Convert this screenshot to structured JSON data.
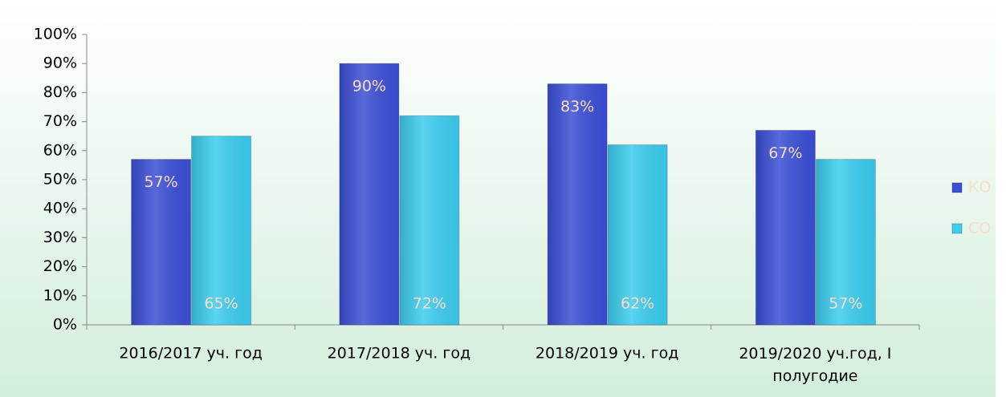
{
  "chart_data": {
    "type": "bar",
    "categories": [
      "2016/2017 уч. год",
      "2017/2018 уч. год",
      "2018/2019 уч. год",
      "2019/2020 уч.год, I полугодие"
    ],
    "series": [
      {
        "name": "КО",
        "color": "#3b4fd6",
        "values": [
          57,
          90,
          83,
          67
        ],
        "value_labels": [
          "57%",
          "90%",
          "83%",
          "67%"
        ]
      },
      {
        "name": "СО",
        "color": "#3ccdef",
        "values": [
          65,
          72,
          62,
          57
        ],
        "value_labels": [
          "65%",
          "72%",
          "62%",
          "57%"
        ]
      }
    ],
    "ylim": [
      0,
      100
    ],
    "yticks": [
      {
        "value": 0,
        "label": "0%"
      },
      {
        "value": 10,
        "label": "10%"
      },
      {
        "value": 20,
        "label": "20%"
      },
      {
        "value": 30,
        "label": "30%"
      },
      {
        "value": 40,
        "label": "40%"
      },
      {
        "value": 50,
        "label": "50%"
      },
      {
        "value": 60,
        "label": "60%"
      },
      {
        "value": 70,
        "label": "70%"
      },
      {
        "value": 80,
        "label": "80%"
      },
      {
        "value": 90,
        "label": "90%"
      },
      {
        "value": 100,
        "label": "100%"
      }
    ],
    "legend": "right"
  }
}
